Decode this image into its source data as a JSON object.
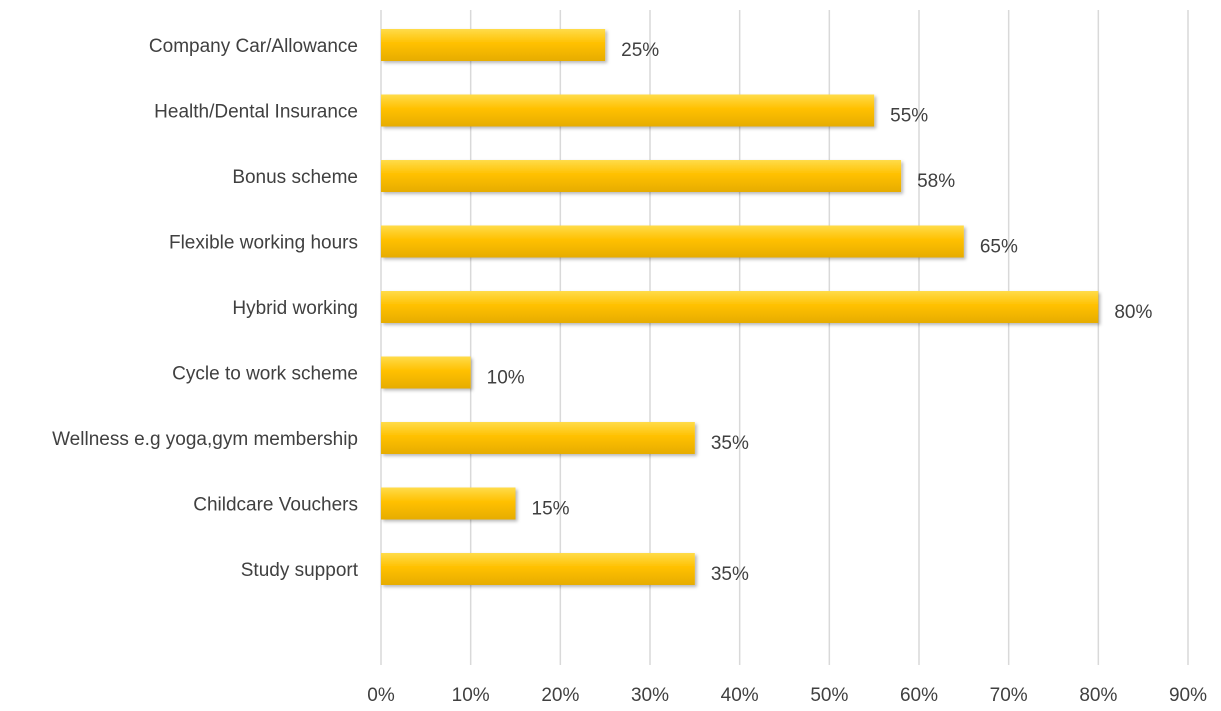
{
  "chart_data": {
    "type": "bar",
    "orientation": "horizontal",
    "categories": [
      "Company Car/Allowance",
      "Health/Dental Insurance",
      "Bonus scheme",
      "Flexible working hours",
      "Hybrid working",
      "Cycle to work scheme",
      "Wellness e.g yoga,gym membership",
      "Childcare Vouchers",
      "Study support"
    ],
    "values": [
      25,
      55,
      58,
      65,
      80,
      10,
      35,
      15,
      35
    ],
    "data_labels": [
      "25%",
      "55%",
      "58%",
      "65%",
      "80%",
      "10%",
      "35%",
      "15%",
      "35%"
    ],
    "x_ticks": [
      "0%",
      "10%",
      "20%",
      "30%",
      "40%",
      "50%",
      "60%",
      "70%",
      "80%",
      "90%"
    ],
    "xlim": [
      0,
      90
    ],
    "grid": true,
    "title": "",
    "xlabel": "",
    "ylabel": "",
    "colors": {
      "bar_top": "#ffdc4a",
      "bar_mid": "#ffc000",
      "bar_bottom": "#e6ac00",
      "grid": "#d9d9d9",
      "text": "#404040"
    }
  }
}
